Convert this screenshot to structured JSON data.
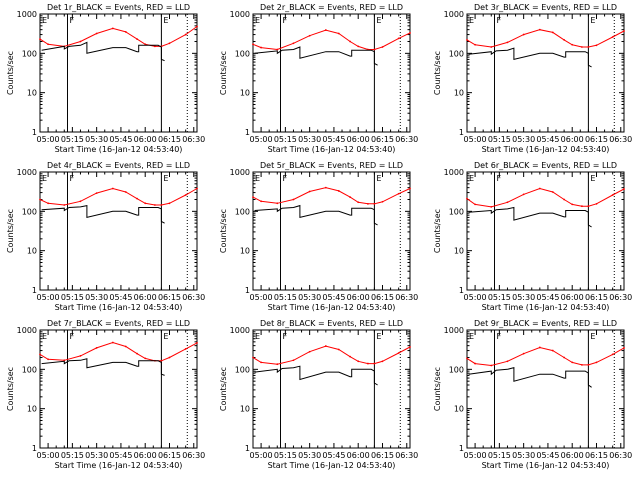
{
  "colors": {
    "events": "#000000",
    "lld": "#ff0000",
    "axis": "#000000",
    "background": "#ffffff"
  },
  "chart_data": {
    "type": "line",
    "shared": {
      "xlabel": "Start Time (16-Jan-12 04:53:40)",
      "ylabel": "Counts/sec",
      "x_units": "minutes since 05:00",
      "x_range": [
        -5,
        92
      ],
      "x_ticks": [
        0,
        15,
        30,
        45,
        60,
        75,
        90
      ],
      "x_tick_labels": [
        "05:00",
        "05:15",
        "05:30",
        "05:45",
        "06:00",
        "06:15",
        "06:30"
      ],
      "y_scale": "log",
      "y_range": [
        1,
        1000
      ],
      "y_ticks": [
        1,
        10,
        100,
        1000
      ],
      "y_tick_labels": [
        "1",
        "10",
        "100",
        "1000"
      ],
      "vertical_markers": [
        {
          "x": 12,
          "style": "solid",
          "label": "F"
        },
        {
          "x": 70,
          "style": "solid",
          "label": "E"
        },
        {
          "x": 86,
          "style": "dotted",
          "label": ""
        }
      ],
      "corner_label": "E"
    },
    "panels": [
      {
        "title": "Det 1r_BLACK = Events, RED = LLD",
        "series": [
          {
            "name": "LLD",
            "color": "red",
            "x": [
              -5,
              0,
              10,
              20,
              30,
              40,
              48,
              55,
              60,
              66,
              70,
              75,
              85,
              92
            ],
            "y": [
              230,
              170,
              150,
              200,
              320,
              430,
              350,
              230,
              170,
              150,
              150,
              180,
              300,
              480
            ]
          },
          {
            "name": "Events",
            "color": "black",
            "x": [
              -4,
              10,
              10,
              13,
              20,
              24,
              24,
              40,
              48,
              55,
              56,
              56,
              68,
              70,
              70,
              72
            ],
            "y": [
              120,
              150,
              130,
              150,
              160,
              190,
              100,
              140,
              140,
              110,
              110,
              160,
              160,
              145,
              70,
              65
            ]
          }
        ]
      },
      {
        "title": "Det 2r_BLACK = Events, RED = LLD",
        "series": [
          {
            "name": "LLD",
            "color": "red",
            "x": [
              -5,
              0,
              10,
              20,
              30,
              40,
              48,
              55,
              60,
              66,
              70,
              75,
              85,
              92
            ],
            "y": [
              170,
              140,
              125,
              180,
              280,
              390,
              320,
              200,
              150,
              125,
              125,
              145,
              240,
              330
            ]
          },
          {
            "name": "Events",
            "color": "black",
            "x": [
              -4,
              10,
              10,
              13,
              20,
              24,
              24,
              40,
              48,
              55,
              56,
              56,
              68,
              70,
              70,
              72
            ],
            "y": [
              100,
              115,
              100,
              120,
              125,
              145,
              75,
              110,
              110,
              85,
              85,
              120,
              120,
              110,
              55,
              50
            ]
          }
        ]
      },
      {
        "title": "Det 3r_BLACK = Events, RED = LLD",
        "series": [
          {
            "name": "LLD",
            "color": "red",
            "x": [
              -5,
              0,
              10,
              20,
              30,
              40,
              48,
              55,
              60,
              66,
              70,
              75,
              85,
              92
            ],
            "y": [
              220,
              165,
              145,
              190,
              300,
              400,
              340,
              220,
              165,
              145,
              145,
              160,
              260,
              370
            ]
          },
          {
            "name": "Events",
            "color": "black",
            "x": [
              -4,
              10,
              10,
              13,
              20,
              24,
              24,
              40,
              48,
              55,
              56,
              56,
              68,
              70,
              70,
              72
            ],
            "y": [
              95,
              110,
              95,
              115,
              120,
              135,
              70,
              100,
              100,
              80,
              80,
              110,
              110,
              100,
              50,
              45
            ]
          }
        ]
      },
      {
        "title": "Det 4r_BLACK = Events, RED = LLD",
        "series": [
          {
            "name": "LLD",
            "color": "red",
            "x": [
              -5,
              0,
              10,
              20,
              30,
              40,
              48,
              55,
              60,
              66,
              70,
              75,
              85,
              92
            ],
            "y": [
              200,
              160,
              145,
              180,
              290,
              380,
              310,
              210,
              160,
              145,
              145,
              160,
              260,
              380
            ]
          },
          {
            "name": "Events",
            "color": "black",
            "x": [
              -4,
              10,
              10,
              13,
              20,
              24,
              24,
              40,
              48,
              55,
              56,
              56,
              68,
              70,
              70,
              72
            ],
            "y": [
              110,
              120,
              105,
              125,
              130,
              140,
              70,
              100,
              100,
              80,
              80,
              125,
              125,
              115,
              55,
              50
            ]
          }
        ]
      },
      {
        "title": "Det 5r_BLACK = Events, RED = LLD",
        "series": [
          {
            "name": "LLD",
            "color": "red",
            "x": [
              -5,
              0,
              10,
              20,
              30,
              40,
              48,
              55,
              60,
              66,
              70,
              75,
              85,
              92
            ],
            "y": [
              230,
              180,
              160,
              200,
              320,
              400,
              330,
              230,
              170,
              155,
              155,
              175,
              280,
              380
            ]
          },
          {
            "name": "Events",
            "color": "black",
            "x": [
              -4,
              10,
              10,
              13,
              20,
              24,
              24,
              40,
              48,
              55,
              56,
              56,
              68,
              70,
              70,
              72
            ],
            "y": [
              105,
              115,
              100,
              120,
              125,
              140,
              70,
              100,
              100,
              80,
              80,
              120,
              120,
              110,
              50,
              45
            ]
          }
        ]
      },
      {
        "title": "Det 6r_BLACK = Events, RED = LLD",
        "series": [
          {
            "name": "LLD",
            "color": "red",
            "x": [
              -5,
              0,
              10,
              20,
              30,
              40,
              48,
              55,
              60,
              66,
              70,
              75,
              85,
              92
            ],
            "y": [
              210,
              150,
              130,
              170,
              270,
              380,
              310,
              200,
              150,
              135,
              135,
              155,
              260,
              370
            ]
          },
          {
            "name": "Events",
            "color": "black",
            "x": [
              -4,
              10,
              10,
              13,
              20,
              24,
              24,
              40,
              48,
              55,
              56,
              56,
              68,
              70,
              70,
              72
            ],
            "y": [
              95,
              105,
              90,
              110,
              115,
              125,
              60,
              90,
              90,
              72,
              72,
              105,
              105,
              95,
              45,
              40
            ]
          }
        ]
      },
      {
        "title": "Det 7r_BLACK = Events, RED = LLD",
        "series": [
          {
            "name": "LLD",
            "color": "red",
            "x": [
              -5,
              0,
              10,
              20,
              30,
              40,
              48,
              55,
              60,
              66,
              70,
              75,
              85,
              92
            ],
            "y": [
              240,
              180,
              170,
              220,
              350,
              480,
              380,
              250,
              190,
              165,
              165,
              200,
              330,
              470
            ]
          },
          {
            "name": "Events",
            "color": "black",
            "x": [
              -4,
              10,
              10,
              13,
              20,
              24,
              24,
              40,
              48,
              55,
              56,
              56,
              68,
              70,
              70,
              72
            ],
            "y": [
              140,
              160,
              140,
              165,
              170,
              185,
              110,
              150,
              150,
              120,
              120,
              165,
              165,
              150,
              75,
              70
            ]
          }
        ]
      },
      {
        "title": "Det 8r_BLACK = Events, RED = LLD",
        "series": [
          {
            "name": "LLD",
            "color": "red",
            "x": [
              -5,
              0,
              10,
              20,
              30,
              40,
              48,
              55,
              60,
              66,
              70,
              75,
              85,
              92
            ],
            "y": [
              200,
              150,
              135,
              170,
              280,
              390,
              320,
              210,
              160,
              140,
              140,
              160,
              260,
              370
            ]
          },
          {
            "name": "Events",
            "color": "black",
            "x": [
              -4,
              10,
              10,
              13,
              20,
              24,
              24,
              40,
              48,
              55,
              56,
              56,
              68,
              70,
              70,
              72
            ],
            "y": [
              85,
              100,
              85,
              105,
              110,
              120,
              55,
              85,
              85,
              65,
              65,
              100,
              100,
              90,
              45,
              40
            ]
          }
        ]
      },
      {
        "title": "Det 9r_BLACK = Events, RED = LLD",
        "series": [
          {
            "name": "LLD",
            "color": "red",
            "x": [
              -5,
              0,
              10,
              20,
              30,
              40,
              48,
              55,
              60,
              66,
              70,
              75,
              85,
              92
            ],
            "y": [
              190,
              140,
              125,
              160,
              250,
              360,
              300,
              200,
              150,
              130,
              130,
              150,
              240,
              350
            ]
          },
          {
            "name": "Events",
            "color": "black",
            "x": [
              -4,
              10,
              10,
              13,
              20,
              24,
              24,
              40,
              48,
              55,
              56,
              56,
              68,
              70,
              70,
              72
            ],
            "y": [
              75,
              90,
              75,
              95,
              100,
              110,
              50,
              75,
              75,
              60,
              60,
              90,
              90,
              80,
              40,
              35
            ]
          }
        ]
      }
    ]
  }
}
